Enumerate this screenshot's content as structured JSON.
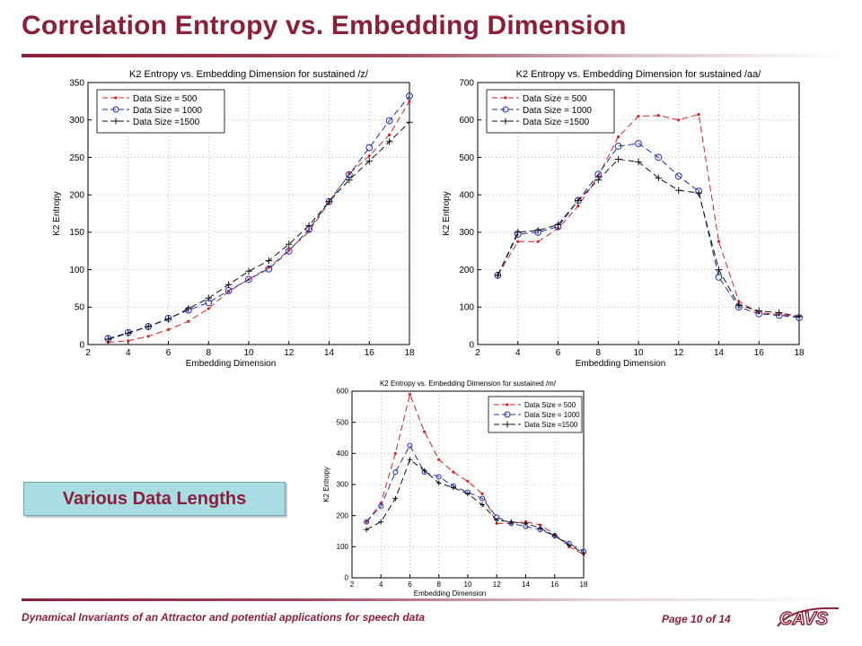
{
  "slide": {
    "title": "Correlation Entropy vs. Embedding Dimension",
    "callout": "Various Data Lengths",
    "footer_left": "Dynamical Invariants of an Attractor and potential applications for speech data",
    "footer_page": "Page 10 of 14",
    "logo_text": "CAVS",
    "colors": {
      "title": "#8b1f3a",
      "callout_bg": "#a9dde4"
    }
  },
  "chart_data": [
    {
      "type": "line",
      "title": "K2 Entropy vs. Embedding Dimension for sustained /z/",
      "xlabel": "Embedding Dimension",
      "ylabel": "K2 Entropy",
      "xlim": [
        2,
        18
      ],
      "ylim": [
        0,
        350
      ],
      "xticks": [
        2,
        4,
        6,
        8,
        10,
        12,
        14,
        16,
        18
      ],
      "yticks": [
        0,
        50,
        100,
        150,
        200,
        250,
        300,
        350
      ],
      "grid": true,
      "legend_position": "top-left",
      "x": [
        3,
        4,
        5,
        6,
        7,
        8,
        9,
        10,
        11,
        12,
        13,
        14,
        15,
        16,
        17,
        18
      ],
      "series": [
        {
          "name": "Data Size = 500",
          "color": "#d62020",
          "marker": "dot",
          "values": [
            3,
            5,
            11,
            20,
            31,
            48,
            71,
            87,
            103,
            126,
            151,
            190,
            228,
            252,
            280,
            325
          ]
        },
        {
          "name": "Data Size = 1000",
          "color": "#1f2fa8",
          "marker": "circle",
          "values": [
            8,
            16,
            24,
            35,
            46,
            56,
            72,
            87,
            101,
            125,
            154,
            191,
            227,
            263,
            299,
            332
          ]
        },
        {
          "name": "Data Size =1500",
          "color": "#111111",
          "marker": "plus",
          "values": [
            7,
            15,
            24,
            34,
            48,
            62,
            80,
            98,
            112,
            134,
            159,
            191,
            220,
            245,
            271,
            297
          ]
        }
      ]
    },
    {
      "type": "line",
      "title": "K2 Entropy vs. Embedding Dimension for sustained /aa/",
      "xlabel": "Embedding Dimension",
      "ylabel": "K2 Entropy",
      "xlim": [
        2,
        18
      ],
      "ylim": [
        0,
        700
      ],
      "xticks": [
        2,
        4,
        6,
        8,
        10,
        12,
        14,
        16,
        18
      ],
      "yticks": [
        0,
        100,
        200,
        300,
        400,
        500,
        600,
        700
      ],
      "grid": true,
      "legend_position": "top-left",
      "x": [
        3,
        4,
        5,
        6,
        7,
        8,
        9,
        10,
        11,
        12,
        13,
        14,
        15,
        16,
        17,
        18
      ],
      "series": [
        {
          "name": "Data Size = 500",
          "color": "#d62020",
          "marker": "dot",
          "values": [
            185,
            275,
            275,
            310,
            370,
            450,
            555,
            610,
            612,
            600,
            615,
            275,
            115,
            85,
            80,
            75
          ]
        },
        {
          "name": "Data Size = 1000",
          "color": "#1f2fa8",
          "marker": "circle",
          "values": [
            185,
            295,
            300,
            315,
            385,
            455,
            530,
            537,
            500,
            450,
            410,
            180,
            100,
            82,
            78,
            72
          ]
        },
        {
          "name": "Data Size =1500",
          "color": "#111111",
          "marker": "plus",
          "values": [
            185,
            300,
            305,
            320,
            385,
            440,
            495,
            488,
            445,
            412,
            405,
            200,
            105,
            90,
            85,
            75
          ]
        }
      ]
    },
    {
      "type": "line",
      "title": "K2 Entropy vs. Embedding Dimension for sustained /m/",
      "xlabel": "Embedding Dimension",
      "ylabel": "K2 Entropy",
      "xlim": [
        2,
        18
      ],
      "ylim": [
        0,
        600
      ],
      "xticks": [
        2,
        4,
        6,
        8,
        10,
        12,
        14,
        16,
        18
      ],
      "yticks": [
        0,
        100,
        200,
        300,
        400,
        500,
        600
      ],
      "grid": true,
      "legend_position": "top-right",
      "x": [
        3,
        4,
        5,
        6,
        7,
        8,
        9,
        10,
        11,
        12,
        13,
        14,
        15,
        16,
        17,
        18
      ],
      "series": [
        {
          "name": "Data Size = 500",
          "color": "#d62020",
          "marker": "dot",
          "values": [
            180,
            240,
            400,
            590,
            470,
            380,
            340,
            310,
            270,
            175,
            175,
            180,
            170,
            140,
            100,
            75
          ]
        },
        {
          "name": "Data Size = 1000",
          "color": "#1f2fa8",
          "marker": "circle",
          "values": [
            180,
            230,
            340,
            425,
            340,
            325,
            295,
            275,
            255,
            195,
            175,
            165,
            155,
            135,
            110,
            85
          ]
        },
        {
          "name": "Data Size =1500",
          "color": "#111111",
          "marker": "plus",
          "values": [
            155,
            180,
            255,
            380,
            345,
            305,
            290,
            270,
            235,
            185,
            180,
            175,
            160,
            135,
            105,
            80
          ]
        }
      ]
    }
  ]
}
